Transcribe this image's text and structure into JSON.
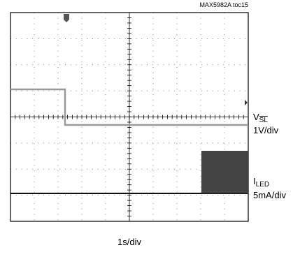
{
  "header": {
    "figure_id": "MAX5982A toc15"
  },
  "channels": [
    {
      "name": "V",
      "sub": "SL",
      "scale": "1V/div"
    },
    {
      "name": "I",
      "sub": "LED",
      "scale": "5mA/div"
    }
  ],
  "time_scale": "1s/div"
}
